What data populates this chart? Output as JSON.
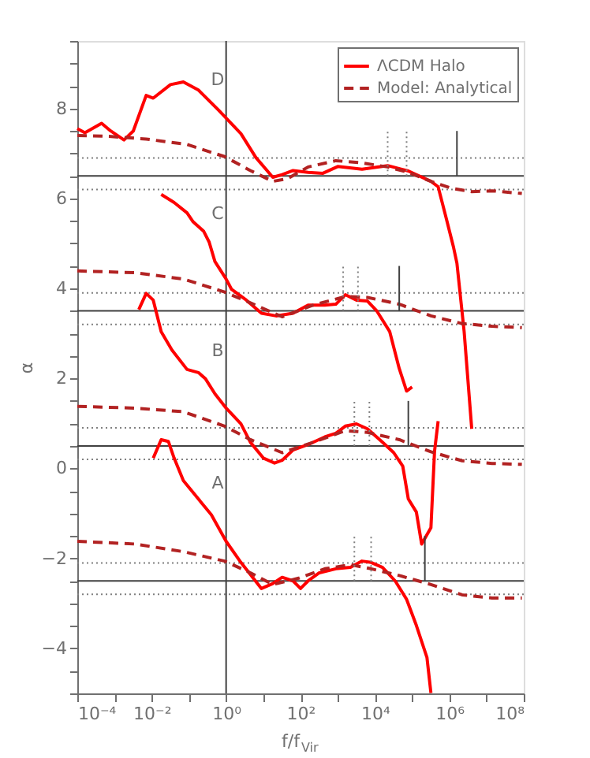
{
  "chart_data": {
    "type": "line",
    "xlabel": "f/f$_{Vir}$",
    "ylabel": "α",
    "log": "x",
    "grid": false,
    "legend": "top right",
    "xlim": [
      0.0001,
      100000000
    ],
    "ylim": [
      -5,
      9.5
    ],
    "xticks": [
      {
        "value": 0.0001,
        "label": "10⁻⁴"
      },
      {
        "value": 0.001,
        "label": null
      },
      {
        "value": 0.01,
        "label": "10⁻²"
      },
      {
        "value": 0.1,
        "label": null
      },
      {
        "value": 1,
        "label": "10⁰"
      },
      {
        "value": 10,
        "label": null
      },
      {
        "value": 100,
        "label": "10²"
      },
      {
        "value": 1000,
        "label": null
      },
      {
        "value": 10000,
        "label": "10⁴"
      },
      {
        "value": 100000,
        "label": null
      },
      {
        "value": 1000000,
        "label": "10⁶"
      },
      {
        "value": 10000000,
        "label": null
      },
      {
        "value": 100000000,
        "label": "10⁸"
      }
    ],
    "yticks": [
      {
        "value": -5,
        "label": null
      },
      {
        "value": -4.5,
        "label": null
      },
      -4,
      {
        "value": -3.5,
        "label": null
      },
      {
        "value": -3,
        "label": null
      },
      {
        "value": -2.5,
        "label": null
      },
      -2,
      {
        "value": -1.5,
        "label": null
      },
      {
        "value": -1,
        "label": null
      },
      {
        "value": -0.5,
        "label": null
      },
      0,
      {
        "value": 0.5,
        "label": null
      },
      {
        "value": 1,
        "label": null
      },
      {
        "value": 1.5,
        "label": null
      },
      2,
      {
        "value": 2.5,
        "label": null
      },
      {
        "value": 3,
        "label": null
      },
      {
        "value": 3.5,
        "label": null
      },
      4,
      {
        "value": 4.5,
        "label": null
      },
      {
        "value": 5,
        "label": null
      },
      {
        "value": 5.5,
        "label": null
      },
      6,
      {
        "value": 6.5,
        "label": null
      },
      {
        "value": 7,
        "label": null
      },
      {
        "value": 7.5,
        "label": null
      },
      8,
      {
        "value": 8.5,
        "label": null
      },
      {
        "value": 9,
        "label": null
      },
      {
        "value": 9.5,
        "label": null
      }
    ],
    "series": [
      {
        "name": "ΛCDM Halo",
        "color": "#ff0000",
        "line_style": "solid",
        "x": [
          0.0001,
          0.00016,
          0.00045,
          0.00079,
          0.0018,
          0.0032,
          0.0071,
          0.011,
          0.032,
          0.071,
          0.18,
          0.63,
          2.5,
          6.3,
          18,
          32,
          63,
          160,
          400,
          1000,
          4500,
          22000,
          79000,
          320000,
          500000,
          790000,
          1300000,
          1600000,
          2500000,
          4000000
        ],
        "values": [
          7.55,
          7.46,
          7.67,
          7.5,
          7.3,
          7.5,
          8.29,
          8.23,
          8.53,
          8.59,
          8.41,
          7.96,
          7.44,
          6.91,
          6.47,
          6.53,
          6.62,
          6.58,
          6.56,
          6.71,
          6.65,
          6.73,
          6.61,
          6.38,
          6.26,
          5.62,
          4.91,
          4.56,
          3.04,
          0.88
        ]
      },
      {
        "color": "#ff0000",
        "line_style": "solid",
        "x": [
          0.018,
          0.04,
          0.089,
          0.13,
          0.25,
          0.35,
          0.5,
          1,
          1.4,
          3.5,
          8.9,
          22,
          63,
          160,
          450,
          890,
          1600,
          3200,
          6300,
          11000,
          25000,
          45000,
          71000,
          100000
        ],
        "values": [
          6.09,
          5.91,
          5.68,
          5.48,
          5.27,
          5.03,
          4.6,
          4.21,
          3.98,
          3.74,
          3.45,
          3.39,
          3.45,
          3.63,
          3.63,
          3.65,
          3.86,
          3.74,
          3.72,
          3.51,
          3.04,
          2.22,
          1.72,
          1.81
        ]
      },
      {
        "color": "#ff0000",
        "line_style": "solid",
        "x": [
          0.0045,
          0.0071,
          0.011,
          0.018,
          0.035,
          0.089,
          0.18,
          0.28,
          0.5,
          1,
          2.5,
          4.5,
          10,
          20,
          32,
          63,
          160,
          450,
          890,
          1600,
          3200,
          6300,
          16000,
          32000,
          56000,
          79000,
          130000,
          180000,
          320000,
          400000,
          500000
        ],
        "values": [
          3.53,
          3.89,
          3.74,
          3.04,
          2.63,
          2.2,
          2.13,
          1.99,
          1.66,
          1.34,
          0.99,
          0.58,
          0.23,
          0.12,
          0.18,
          0.41,
          0.53,
          0.7,
          0.78,
          0.94,
          0.99,
          0.88,
          0.58,
          0.35,
          0.05,
          -0.68,
          -0.97,
          -1.68,
          -1.32,
          0.38,
          1.05
        ]
      },
      {
        "color": "#ff0000",
        "line_style": "solid",
        "x": [
          0.011,
          0.018,
          0.028,
          0.04,
          0.071,
          0.18,
          0.4,
          1,
          2.5,
          8.9,
          18,
          32,
          63,
          100,
          160,
          320,
          890,
          2200,
          4500,
          7900,
          16000,
          35000,
          71000,
          130000,
          250000,
          320000
        ],
        "values": [
          0.23,
          0.64,
          0.6,
          0.23,
          -0.27,
          -0.68,
          -1.03,
          -1.62,
          -2.09,
          -2.67,
          -2.56,
          -2.42,
          -2.5,
          -2.67,
          -2.5,
          -2.32,
          -2.23,
          -2.2,
          -2.06,
          -2.09,
          -2.2,
          -2.5,
          -2.91,
          -3.49,
          -4.2,
          -4.99
        ]
      },
      {
        "name": "Model: Analytical",
        "color": "#b22222",
        "line_style": "dashed",
        "x": [
          0.0001,
          0.00071,
          0.0071,
          0.089,
          0.91,
          4.5,
          18,
          45,
          160,
          890,
          4500,
          22000,
          79000,
          320000,
          1100000,
          4000000,
          14000000,
          89000000
        ],
        "values": [
          7.4,
          7.38,
          7.32,
          7.2,
          6.93,
          6.62,
          6.38,
          6.44,
          6.7,
          6.84,
          6.79,
          6.7,
          6.58,
          6.38,
          6.23,
          6.15,
          6.17,
          6.11
        ]
      },
      {
        "color": "#b22222",
        "line_style": "dashed",
        "x": [
          0.0001,
          0.0035,
          0.071,
          0.91,
          4.5,
          32,
          220,
          1600,
          6300,
          45000,
          320000,
          2200000,
          14000000,
          89000000
        ],
        "values": [
          4.39,
          4.35,
          4.21,
          3.92,
          3.68,
          3.37,
          3.63,
          3.82,
          3.8,
          3.65,
          3.39,
          3.22,
          3.16,
          3.13
        ]
      },
      {
        "color": "#b22222",
        "line_style": "dashed",
        "x": [
          0.0001,
          0.0035,
          0.071,
          0.91,
          4.5,
          32,
          220,
          1600,
          6300,
          45000,
          320000,
          2200000,
          14000000,
          89000000
        ],
        "values": [
          1.38,
          1.34,
          1.26,
          0.94,
          0.64,
          0.35,
          0.58,
          0.84,
          0.8,
          0.64,
          0.37,
          0.17,
          0.11,
          0.09
        ]
      },
      {
        "color": "#b22222",
        "line_style": "dashed",
        "x": [
          0.0001,
          0.0035,
          0.071,
          0.91,
          4.5,
          18,
          89,
          450,
          2200,
          7900,
          45000,
          320000,
          2200000,
          14000000,
          89000000
        ],
        "values": [
          -1.62,
          -1.68,
          -1.85,
          -2.06,
          -2.32,
          -2.58,
          -2.44,
          -2.23,
          -2.14,
          -2.23,
          -2.38,
          -2.58,
          -2.81,
          -2.88,
          -2.88
        ]
      },
      {
        "color": "#808080",
        "line_style": "dotted",
        "x": [
          22000,
          22000
        ],
        "values": [
          6.5,
          7.5
        ]
      },
      {
        "color": "#808080",
        "line_style": "dotted",
        "x": [
          71000,
          71000
        ],
        "values": [
          6.5,
          7.5
        ]
      },
      {
        "color": "#404040",
        "line_style": "solid",
        "x": [
          1600000,
          1600000
        ],
        "values": [
          6.5,
          7.5
        ]
      },
      {
        "color": "#808080",
        "line_style": "dotted",
        "x": [
          1400,
          1400
        ],
        "values": [
          3.5,
          4.5
        ]
      },
      {
        "color": "#808080",
        "line_style": "dotted",
        "x": [
          3500,
          3500
        ],
        "values": [
          3.5,
          4.5
        ]
      },
      {
        "color": "#404040",
        "line_style": "solid",
        "x": [
          45000,
          45000
        ],
        "values": [
          3.5,
          4.5
        ]
      },
      {
        "color": "#808080",
        "line_style": "dotted",
        "x": [
          2800,
          2800
        ],
        "values": [
          0.5,
          1.5
        ]
      },
      {
        "color": "#808080",
        "line_style": "dotted",
        "x": [
          7100,
          7100
        ],
        "values": [
          0.5,
          1.5
        ]
      },
      {
        "color": "#404040",
        "line_style": "solid",
        "x": [
          79000,
          79000
        ],
        "values": [
          0.5,
          1.5
        ]
      },
      {
        "color": "#808080",
        "line_style": "dotted",
        "x": [
          2800,
          2800
        ],
        "values": [
          -2.5,
          -1.5
        ]
      },
      {
        "color": "#808080",
        "line_style": "dotted",
        "x": [
          7900,
          7900
        ],
        "values": [
          -2.5,
          -1.5
        ]
      },
      {
        "color": "#404040",
        "line_style": "solid",
        "x": [
          220000,
          220000
        ],
        "values": [
          -2.5,
          -1.5
        ]
      }
    ],
    "ref_lines": [
      {
        "axis": "x",
        "value": 1,
        "color": "#404040",
        "line_style": "solid"
      },
      {
        "axis": "y",
        "value": 6.5,
        "color": "#404040",
        "line_style": "solid"
      },
      {
        "axis": "y",
        "value": 6.9,
        "color": "#808080",
        "line_style": "dotted"
      },
      {
        "axis": "y",
        "value": 6.2,
        "color": "#808080",
        "line_style": "dotted"
      },
      {
        "axis": "y",
        "value": 3.5,
        "color": "#404040",
        "line_style": "solid"
      },
      {
        "axis": "y",
        "value": 3.9,
        "color": "#808080",
        "line_style": "dotted"
      },
      {
        "axis": "y",
        "value": 3.2,
        "color": "#808080",
        "line_style": "dotted"
      },
      {
        "axis": "y",
        "value": 0.5,
        "color": "#404040",
        "line_style": "solid"
      },
      {
        "axis": "y",
        "value": 0.9,
        "color": "#808080",
        "line_style": "dotted"
      },
      {
        "axis": "y",
        "value": 0.2,
        "color": "#808080",
        "line_style": "dotted"
      },
      {
        "axis": "y",
        "value": -2.5,
        "color": "#404040",
        "line_style": "solid"
      },
      {
        "axis": "y",
        "value": -2.1,
        "color": "#808080",
        "line_style": "dotted"
      },
      {
        "axis": "y",
        "value": -2.8,
        "color": "#808080",
        "line_style": "dotted"
      }
    ],
    "annotations": [
      "D",
      "C",
      "B",
      "A"
    ]
  }
}
